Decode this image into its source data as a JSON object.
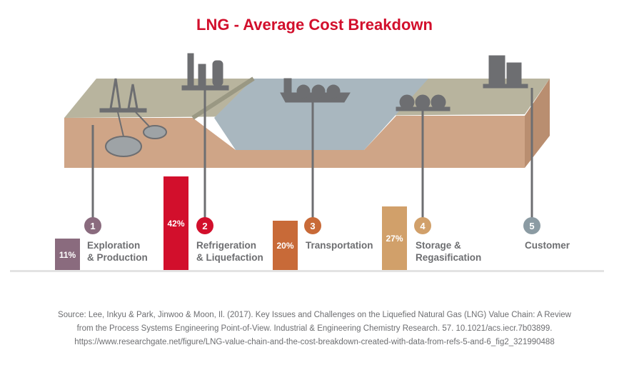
{
  "title": "LNG - Average Cost Breakdown",
  "chart_data": {
    "type": "bar",
    "title": "LNG - Average Cost Breakdown",
    "categories": [
      "Exploration & Production",
      "Refrigeration & Liquefaction",
      "Transportation",
      "Storage & Regasification",
      "Customer"
    ],
    "values": [
      11,
      42,
      20,
      27,
      null
    ],
    "labels": [
      "11%",
      "42%",
      "20%",
      "27%",
      ""
    ],
    "colors": [
      "#8a6b7e",
      "#d20f2c",
      "#c86a38",
      "#d1a06a",
      "#8b9ba3"
    ],
    "steps": [
      {
        "num": "1",
        "label": "Exploration\n& Production",
        "icon": "oil-rig-icon"
      },
      {
        "num": "2",
        "label": "Refrigeration\n& Liquefaction",
        "icon": "refinery-icon"
      },
      {
        "num": "3",
        "label": "Transportation",
        "icon": "lng-ship-icon"
      },
      {
        "num": "4",
        "label": "Storage &\nRegasification",
        "icon": "storage-tanks-icon"
      },
      {
        "num": "5",
        "label": "Customer",
        "icon": "buildings-icon"
      }
    ]
  },
  "source": [
    "Source: Lee, Inkyu & Park, Jinwoo & Moon, Il. (2017). Key Issues and Challenges on the Liquefied Natural Gas (LNG) Value Chain: A Review",
    "from the Process Systems Engineering Point-of-View. Industrial & Engineering Chemistry Research. 57. 10.1021/acs.iecr.7b03899.",
    "https://www.researchgate.net/figure/LNG-value-chain-and-the-cost-breakdown-created-with-data-from-refs-5-and-6_fig2_321990488"
  ]
}
